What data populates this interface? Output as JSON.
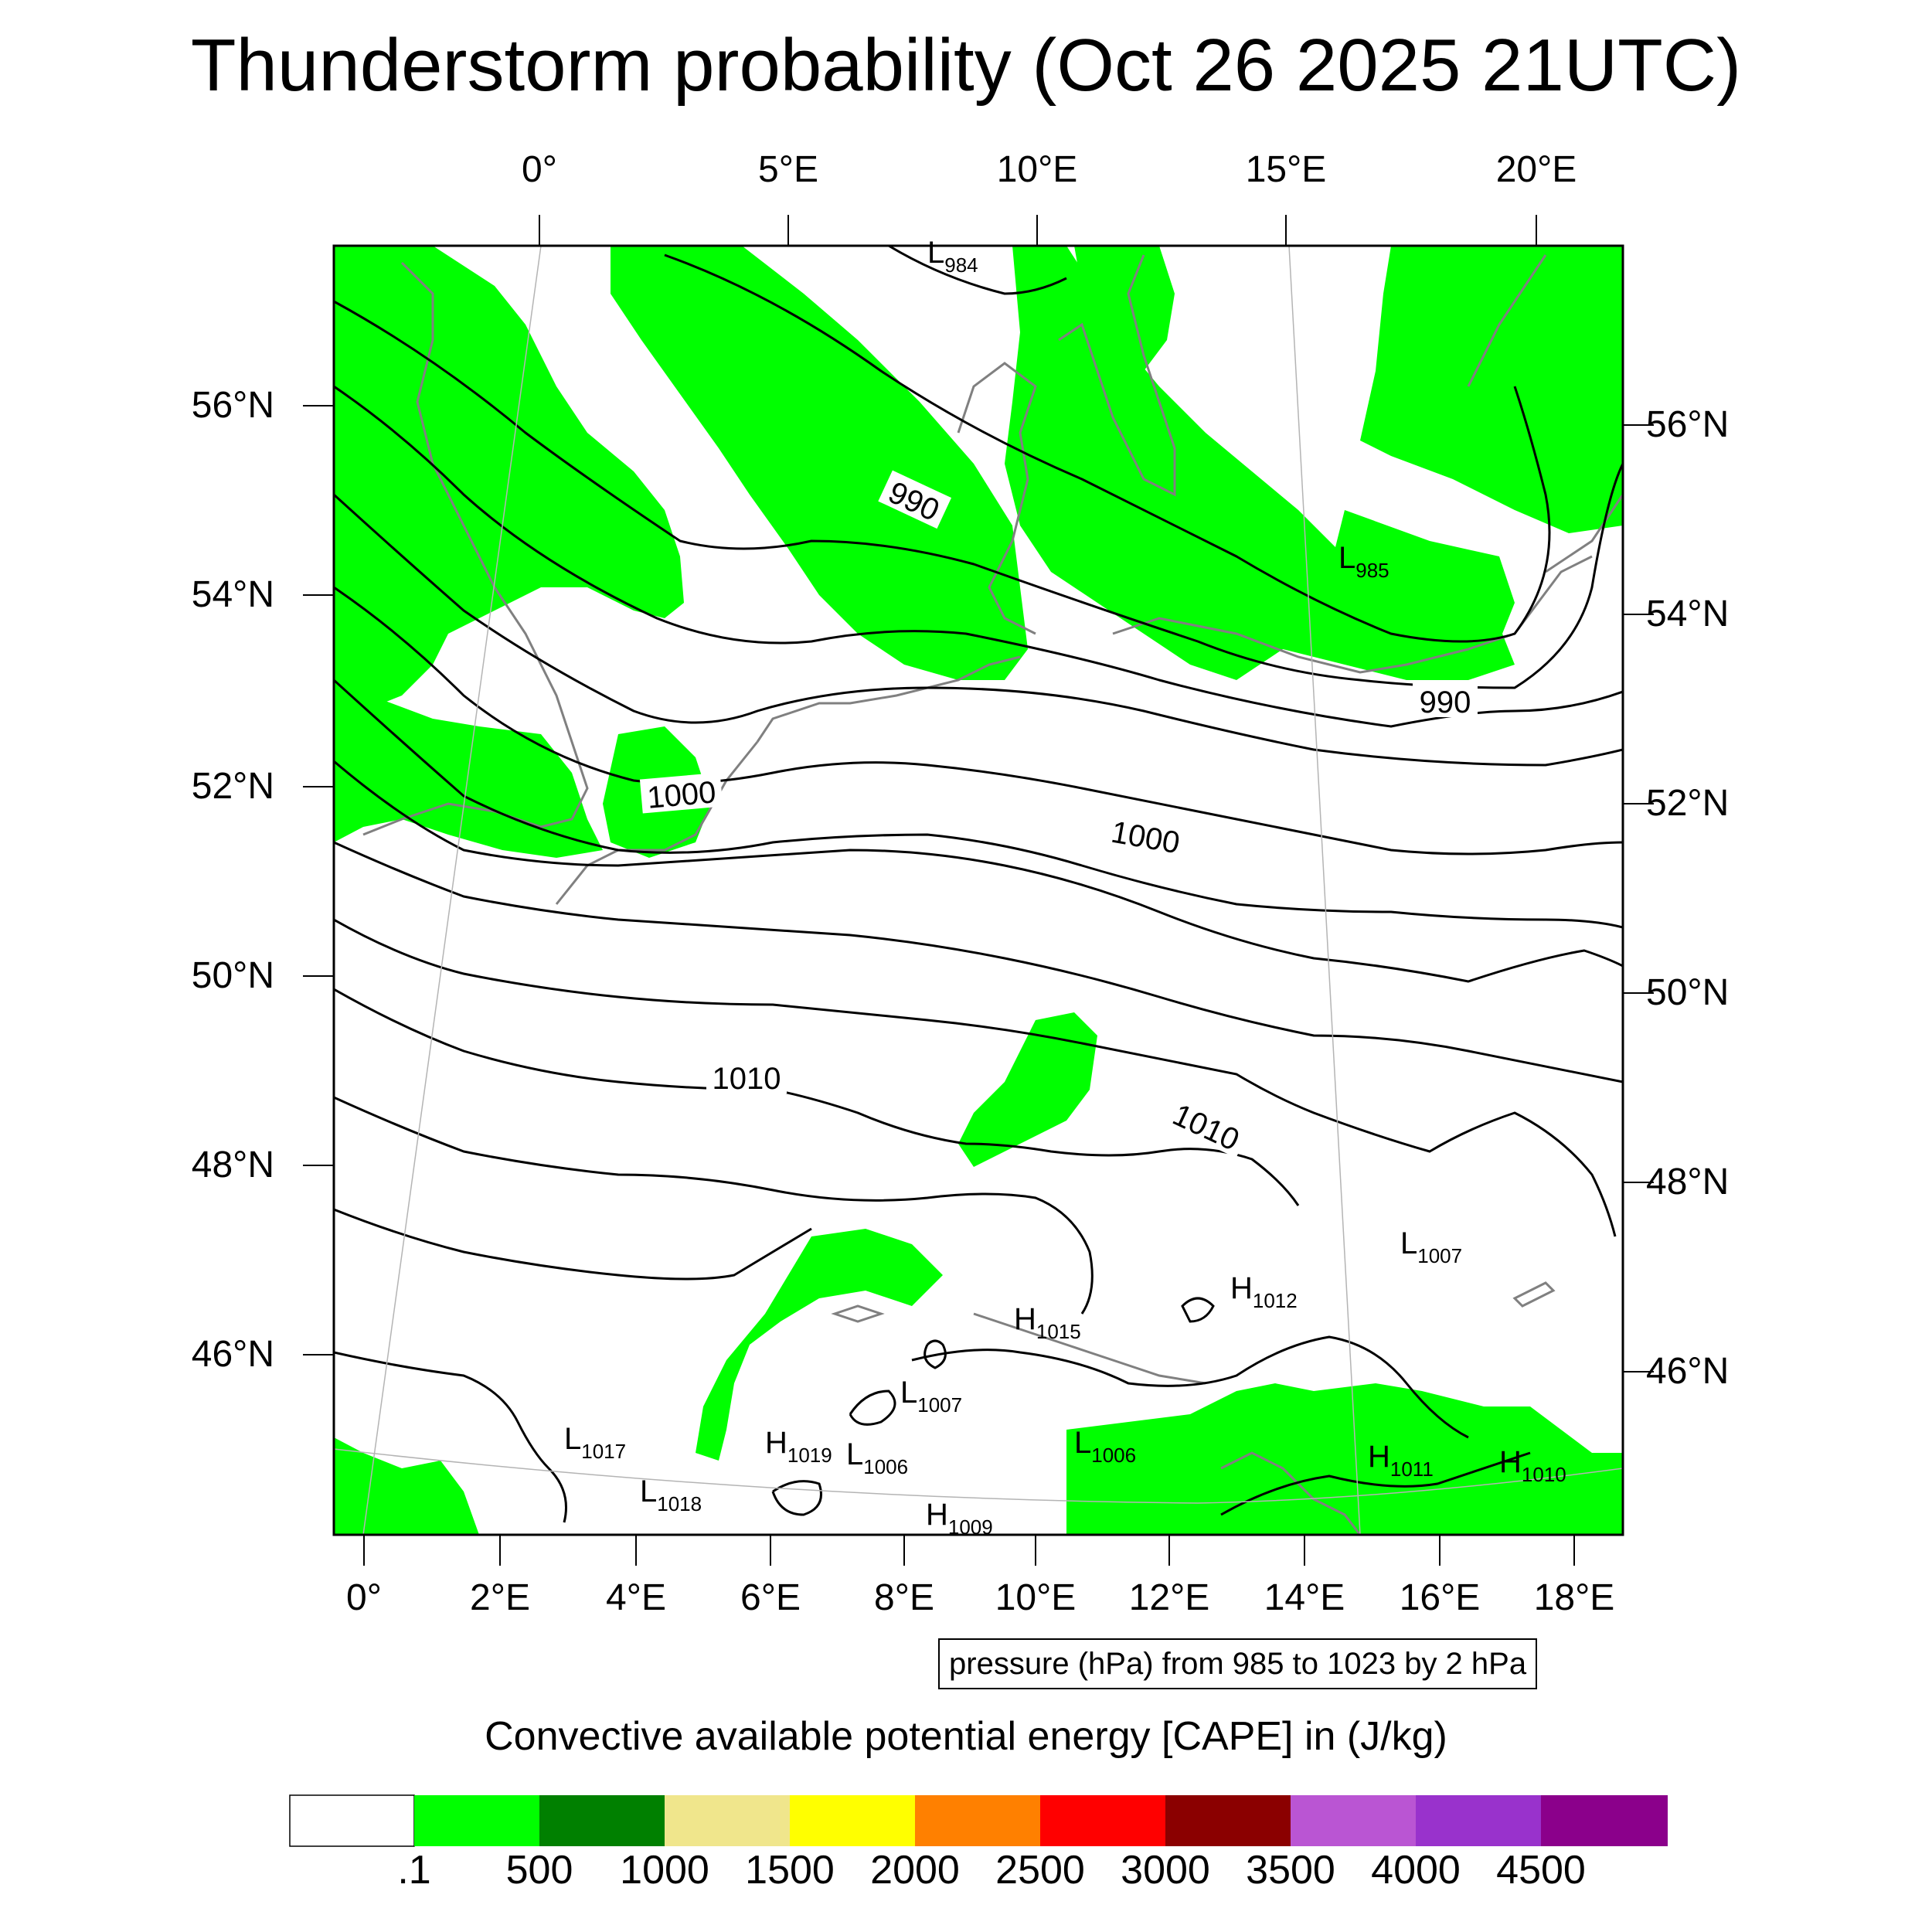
{
  "title": "Thunderstorm probability (Oct 26 2025 21UTC)",
  "top_lon_labels": [
    "0°",
    "5°E",
    "10°E",
    "15°E",
    "20°E"
  ],
  "bottom_lon_labels": [
    "0°",
    "2°E",
    "4°E",
    "6°E",
    "8°E",
    "10°E",
    "12°E",
    "14°E",
    "16°E",
    "18°E"
  ],
  "left_lat_labels": [
    "56°N",
    "54°N",
    "52°N",
    "50°N",
    "48°N",
    "46°N"
  ],
  "right_lat_labels": [
    "56°N",
    "54°N",
    "52°N",
    "50°N",
    "48°N",
    "46°N"
  ],
  "contour_labels": [
    "990",
    "990",
    "1000",
    "1000",
    "1010",
    "1010"
  ],
  "pressure_centers": [
    {
      "type": "L",
      "value": "984"
    },
    {
      "type": "L",
      "value": "985"
    },
    {
      "type": "L",
      "value": "1007"
    },
    {
      "type": "H",
      "value": "1012"
    },
    {
      "type": "H",
      "value": "1015"
    },
    {
      "type": "L",
      "value": "1007"
    },
    {
      "type": "L",
      "value": "1017"
    },
    {
      "type": "H",
      "value": "1019"
    },
    {
      "type": "L",
      "value": "1006"
    },
    {
      "type": "L",
      "value": "1006"
    },
    {
      "type": "L",
      "value": "1018"
    },
    {
      "type": "H",
      "value": "1009"
    },
    {
      "type": "H",
      "value": "1011"
    },
    {
      "type": "H",
      "value": "1010"
    }
  ],
  "contour_info": "pressure (hPa) from 985 to 1023 by 2 hPa",
  "colorbar": {
    "title": "Convective available potential energy [CAPE] in (J/kg)",
    "colors": [
      "#ffffff",
      "#00ff00",
      "#008000",
      "#f0e68c",
      "#ffff00",
      "#ff8000",
      "#ff0000",
      "#8b0000",
      "#ba55d3",
      "#9932cc",
      "#8b008b"
    ],
    "labels": [
      ".1",
      "500",
      "1000",
      "1500",
      "2000",
      "2500",
      "3000",
      "3500",
      "4000",
      "4500"
    ]
  },
  "colors": {
    "cape_fill": "#00ff00",
    "coastline": "#808080",
    "isobar": "#000000"
  }
}
